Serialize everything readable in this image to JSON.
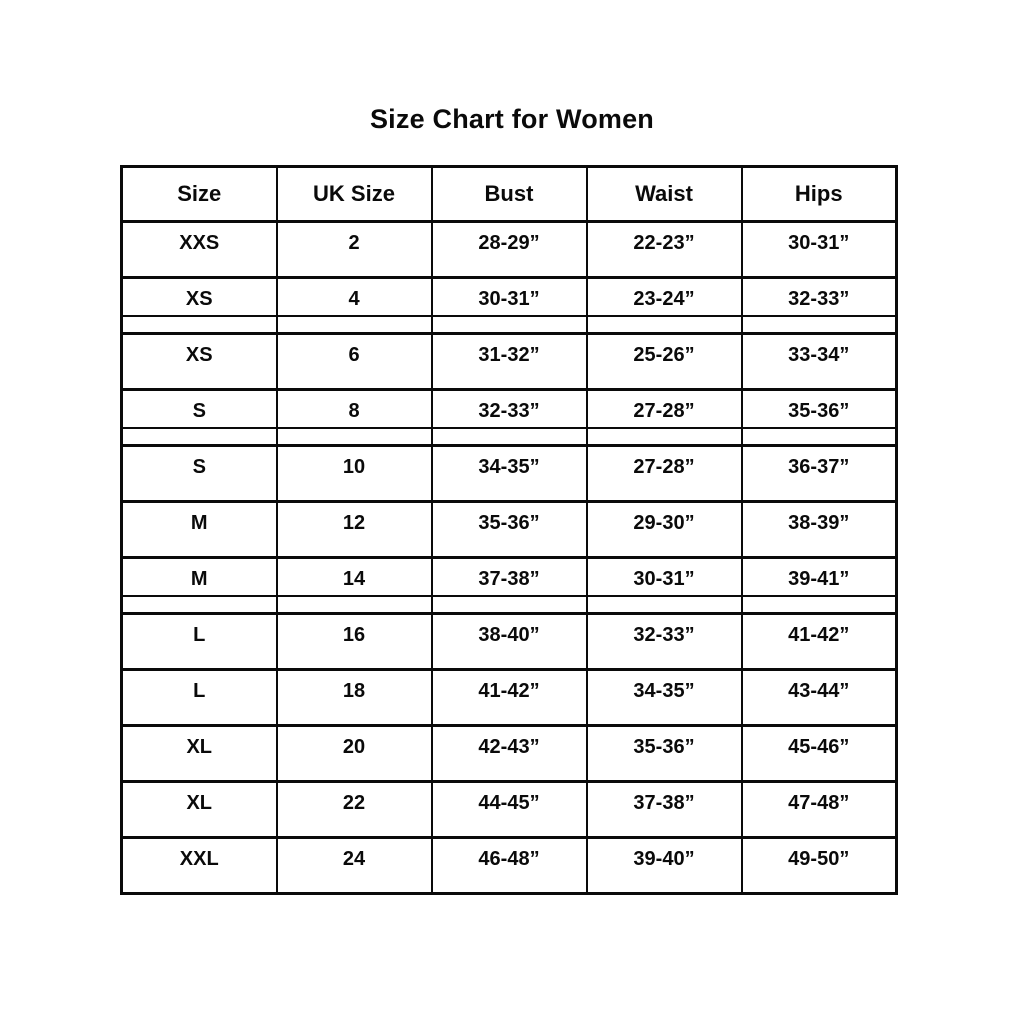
{
  "title": "Size Chart for Women",
  "chart_data": {
    "type": "table",
    "title": "Size Chart for Women",
    "columns": [
      "Size",
      "UK Size",
      "Bust",
      "Waist",
      "Hips"
    ],
    "rows": [
      [
        "XXS",
        "2",
        "28-29”",
        "22-23”",
        "30-31”"
      ],
      [
        "XS",
        "4",
        "30-31”",
        "23-24”",
        "32-33”"
      ],
      [
        "XS",
        "6",
        "31-32”",
        "25-26”",
        "33-34”"
      ],
      [
        "S",
        "8",
        "32-33”",
        "27-28”",
        "35-36”"
      ],
      [
        "S",
        "10",
        "34-35”",
        "27-28”",
        "36-37”"
      ],
      [
        "M",
        "12",
        "35-36”",
        "29-30”",
        "38-39”"
      ],
      [
        "M",
        "14",
        "37-38”",
        "30-31”",
        "39-41”"
      ],
      [
        "L",
        "16",
        "38-40”",
        "32-33”",
        "41-42”"
      ],
      [
        "L",
        "18",
        "41-42”",
        "34-35”",
        "43-44”"
      ],
      [
        "XL",
        "20",
        "42-43”",
        "35-36”",
        "45-46”"
      ],
      [
        "XL",
        "22",
        "44-45”",
        "37-38”",
        "47-48”"
      ],
      [
        "XXL",
        "24",
        "46-48”",
        "39-40”",
        "49-50”"
      ]
    ]
  },
  "colors": {
    "text": "#0a0a0a",
    "border": "#0a0a0a",
    "background": "#ffffff"
  }
}
